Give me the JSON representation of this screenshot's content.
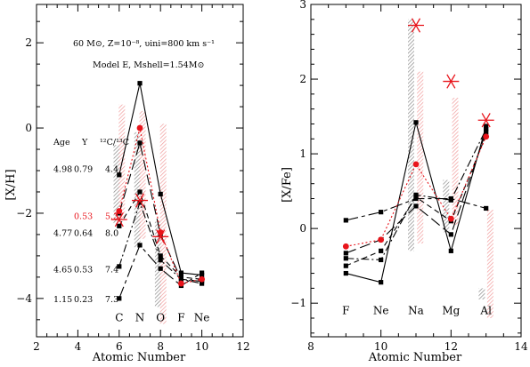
{
  "chart_data": [
    {
      "type": "line",
      "panel": "left",
      "xlabel": "Atomic Number",
      "ylabel": "[X/H]",
      "xlim": [
        2,
        12
      ],
      "ylim": [
        -4.9,
        2.9
      ],
      "x_ticks": [
        "2",
        "4",
        "6",
        "8",
        "10",
        "12"
      ],
      "y_ticks": [
        "−4",
        "−2",
        "0",
        "2"
      ],
      "model_note_line1": "60 M⊙, Z=10⁻⁸, υini=800 km s⁻¹",
      "model_note_line2": "Model E, Mshell=1.54M⊙",
      "element_labels": [
        {
          "x": 6,
          "y": -4.45,
          "text": "C"
        },
        {
          "x": 7,
          "y": -4.45,
          "text": "N"
        },
        {
          "x": 8,
          "y": -4.45,
          "text": "O"
        },
        {
          "x": 9,
          "y": -4.45,
          "text": "F"
        },
        {
          "x": 10,
          "y": -4.45,
          "text": "Ne"
        }
      ],
      "table": {
        "headers": [
          "Age",
          "Y",
          "¹²C/¹³C"
        ],
        "rows": [
          {
            "age": "4.98",
            "y": "0.79",
            "ratio": "4.4",
            "yval": -0.95,
            "red": false
          },
          {
            "age": "",
            "y": "0.53",
            "ratio": "5.3",
            "yval": -2.05,
            "red": true
          },
          {
            "age": "4.77",
            "y": "0.64",
            "ratio": "8.0",
            "yval": -2.45,
            "red": false
          },
          {
            "age": "4.65",
            "y": "0.53",
            "ratio": "7.4",
            "yval": -3.3,
            "red": false
          },
          {
            "age": "1.15",
            "y": "0.23",
            "ratio": "7.3",
            "yval": -4.0,
            "red": false
          }
        ]
      },
      "bands": [
        {
          "x": 5.88,
          "y0": -2.25,
          "y1": -0.4,
          "color": "#888888"
        },
        {
          "x": 6.13,
          "y0": -2.15,
          "y1": 0.55,
          "color": "#f4a0a0"
        },
        {
          "x": 6.88,
          "y0": -2.8,
          "y1": -0.1,
          "color": "#888888"
        },
        {
          "x": 7.13,
          "y0": -2.6,
          "y1": 0.4,
          "color": "#f4a0a0"
        },
        {
          "x": 7.88,
          "y0": -4.2,
          "y1": -2.2,
          "color": "#888888"
        },
        {
          "x": 8.13,
          "y0": -4.6,
          "y1": 0.1,
          "color": "#f4a0a0"
        }
      ],
      "stars": [
        {
          "x": 6,
          "y": -2.15
        },
        {
          "x": 7,
          "y": -1.7
        },
        {
          "x": 8,
          "y": -2.55
        }
      ],
      "series": [
        {
          "style": "solid",
          "color": "#000000",
          "marker": "square",
          "x": [
            6,
            7,
            8,
            9,
            10
          ],
          "y": [
            -1.1,
            1.05,
            -1.55,
            -3.4,
            -3.45
          ]
        },
        {
          "style": "long-dash",
          "color": "#000000",
          "marker": "square",
          "x": [
            6,
            7,
            8,
            9,
            10
          ],
          "y": [
            -2.0,
            -0.35,
            -2.5,
            -3.55,
            -3.6
          ]
        },
        {
          "style": "dash",
          "color": "#000000",
          "marker": "square",
          "x": [
            6,
            7,
            8,
            9,
            10
          ],
          "y": [
            -2.3,
            -1.5,
            -3.0,
            -3.5,
            -3.55
          ]
        },
        {
          "style": "dash-dot",
          "color": "#000000",
          "marker": "square",
          "x": [
            6,
            7,
            8,
            9,
            10
          ],
          "y": [
            -3.25,
            -1.75,
            -3.1,
            -3.55,
            -3.65
          ]
        },
        {
          "style": "long-short",
          "color": "#000000",
          "marker": "square",
          "x": [
            6,
            7,
            8,
            9,
            10
          ],
          "y": [
            -4.0,
            -2.75,
            -3.3,
            -3.7,
            -3.4
          ]
        },
        {
          "style": "dotted",
          "color": "#e8141b",
          "marker": "circle",
          "x": [
            6,
            7,
            8,
            9,
            10
          ],
          "y": [
            -1.95,
            0.0,
            -2.45,
            -3.65,
            -3.55
          ]
        }
      ]
    },
    {
      "type": "line",
      "panel": "right",
      "xlabel": "Atomic Number",
      "ylabel": "[X/Fe]",
      "xlim": [
        8,
        14
      ],
      "ylim": [
        -1.45,
        3.0
      ],
      "x_ticks": [
        "8",
        "10",
        "12",
        "14"
      ],
      "y_ticks": [
        "−1",
        "0",
        "1",
        "2",
        "3"
      ],
      "element_labels": [
        {
          "x": 9,
          "y": -1.1,
          "text": "F"
        },
        {
          "x": 10,
          "y": -1.1,
          "text": "Ne"
        },
        {
          "x": 11,
          "y": -1.1,
          "text": "Na"
        },
        {
          "x": 12,
          "y": -1.1,
          "text": "Mg"
        },
        {
          "x": 13,
          "y": -1.1,
          "text": "Al"
        }
      ],
      "bands": [
        {
          "x": 10.86,
          "y0": -0.3,
          "y1": 2.8,
          "color": "#888888"
        },
        {
          "x": 11.12,
          "y0": -0.2,
          "y1": 2.1,
          "color": "#f4a0a0"
        },
        {
          "x": 11.86,
          "y0": -0.05,
          "y1": 0.65,
          "color": "#888888"
        },
        {
          "x": 12.12,
          "y0": 0.05,
          "y1": 1.75,
          "color": "#f4a0a0"
        },
        {
          "x": 12.88,
          "y0": -0.95,
          "y1": -0.8,
          "color": "#888888"
        },
        {
          "x": 13.12,
          "y0": -1.2,
          "y1": 0.25,
          "color": "#f4a0a0"
        }
      ],
      "stars": [
        {
          "x": 11,
          "y": 2.72
        },
        {
          "x": 12,
          "y": 1.97
        },
        {
          "x": 13,
          "y": 1.45
        }
      ],
      "series": [
        {
          "style": "solid",
          "color": "#000000",
          "marker": "square",
          "x": [
            9,
            10,
            11,
            12,
            13
          ],
          "y": [
            -0.6,
            -0.72,
            1.42,
            -0.3,
            1.37
          ]
        },
        {
          "style": "long-dash",
          "color": "#000000",
          "marker": "square",
          "x": [
            9,
            10,
            11,
            12,
            13
          ],
          "y": [
            -0.33,
            -0.15,
            0.3,
            -0.08,
            1.3
          ]
        },
        {
          "style": "dash",
          "color": "#000000",
          "marker": "square",
          "x": [
            9,
            10,
            11,
            12,
            13
          ],
          "y": [
            -0.5,
            -0.3,
            0.42,
            0.1,
            1.25
          ]
        },
        {
          "style": "dash-dot",
          "color": "#000000",
          "marker": "square",
          "x": [
            9,
            10,
            11,
            12,
            13
          ],
          "y": [
            -0.4,
            -0.42,
            0.45,
            0.38,
            1.33
          ]
        },
        {
          "style": "long-short",
          "color": "#000000",
          "marker": "square",
          "x": [
            9,
            10,
            11,
            12,
            13
          ],
          "y": [
            0.11,
            0.22,
            0.4,
            0.4,
            0.27
          ]
        },
        {
          "style": "dotted",
          "color": "#e8141b",
          "marker": "circle",
          "x": [
            9,
            10,
            11,
            12,
            13
          ],
          "y": [
            -0.24,
            -0.15,
            0.86,
            0.13,
            1.23
          ]
        }
      ]
    }
  ]
}
